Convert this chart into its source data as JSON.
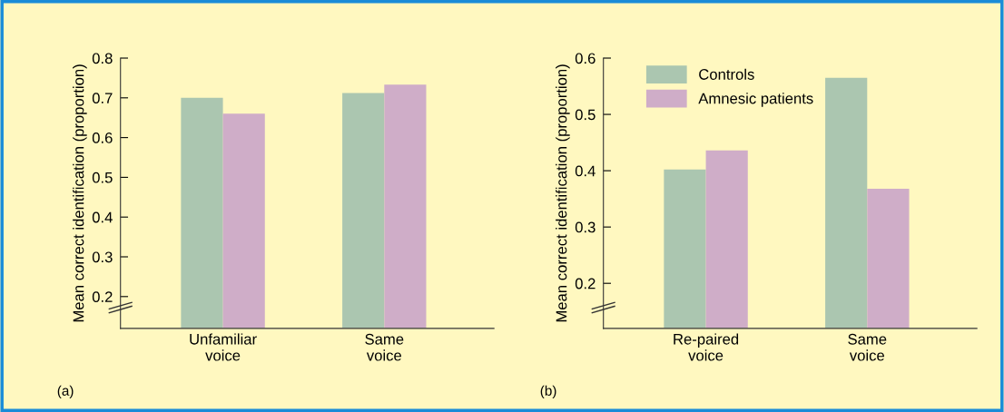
{
  "chart_data": [
    {
      "type": "bar",
      "ylabel": "Mean correct identification (proportion)",
      "categories": [
        "Unfamiliar\nvoice",
        "Same\nvoice"
      ],
      "series": [
        {
          "color": "#abc6b0",
          "values": [
            0.7,
            0.712
          ]
        },
        {
          "color": "#cfadc8",
          "values": [
            0.66,
            0.733
          ]
        }
      ],
      "ylim": [
        0.12,
        0.8
      ],
      "yticks": [
        0.2,
        0.3,
        0.4,
        0.5,
        0.6,
        0.7,
        0.8
      ],
      "grid": false,
      "legend": false,
      "annotations": [
        "(a)"
      ]
    },
    {
      "type": "bar",
      "ylabel": "Mean correct identification (proportion)",
      "categories": [
        "Re-paired\nvoice",
        "Same\nvoice"
      ],
      "series": [
        {
          "name": "Controls",
          "color": "#abc6b0",
          "values": [
            0.402,
            0.565
          ]
        },
        {
          "name": "Amnesic patients",
          "color": "#cfadc8",
          "values": [
            0.436,
            0.368
          ]
        }
      ],
      "ylim": [
        0.12,
        0.6
      ],
      "yticks": [
        0.2,
        0.3,
        0.4,
        0.5,
        0.6
      ],
      "grid": false,
      "legend": "top left",
      "annotations": [
        "(b)"
      ]
    }
  ]
}
